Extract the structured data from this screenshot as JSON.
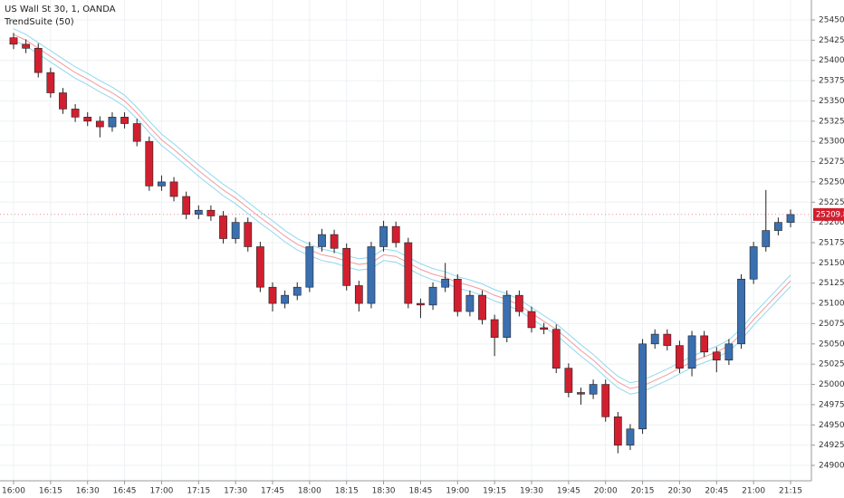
{
  "chart_data": {
    "type": "candlestick",
    "title": "US Wall St 30, 1, OANDA",
    "subtitle": "TrendSuite (50)",
    "categories": [
      "16:00",
      null,
      null,
      "16:15",
      null,
      null,
      "16:30",
      null,
      null,
      "16:45",
      null,
      null,
      "17:00",
      null,
      null,
      "17:15",
      null,
      null,
      "17:30",
      null,
      null,
      "17:45",
      null,
      null,
      "18:00",
      null,
      null,
      "18:15",
      null,
      null,
      "18:30",
      null,
      null,
      "18:45",
      null,
      null,
      "19:00",
      null,
      null,
      "19:15",
      null,
      null,
      "19:30",
      null,
      null,
      "19:45",
      null,
      null,
      "20:00",
      null,
      null,
      "20:15",
      null,
      null,
      "20:30",
      null,
      null,
      "20:45",
      null,
      null,
      "21:00",
      null,
      null,
      "21:15"
    ],
    "open": [
      25428,
      25420,
      25415,
      25385,
      25360,
      25340,
      25330,
      25325,
      25318,
      25330,
      25322,
      25300,
      25245,
      25250,
      25232,
      25210,
      25215,
      25208,
      25180,
      25200,
      25170,
      25120,
      25100,
      25110,
      25120,
      25170,
      25185,
      25168,
      25122,
      25100,
      25170,
      25195,
      25175,
      25100,
      25098,
      25120,
      25130,
      25090,
      25110,
      25080,
      25058,
      25110,
      25090,
      25070,
      25068,
      25020,
      24990,
      24988,
      25000,
      24960,
      24925,
      24945,
      25050,
      25062,
      25048,
      25020,
      25060,
      25040,
      25030,
      25050,
      25130,
      25170,
      25190,
      25200
    ],
    "high": [
      25434,
      25426,
      25421,
      25391,
      25366,
      25346,
      25336,
      25331,
      25336,
      25336,
      25328,
      25306,
      25258,
      25256,
      25238,
      25221,
      25221,
      25214,
      25206,
      25206,
      25176,
      25126,
      25116,
      25126,
      25176,
      25192,
      25191,
      25174,
      25128,
      25176,
      25202,
      25201,
      25181,
      25106,
      25126,
      25150,
      25136,
      25116,
      25116,
      25086,
      25116,
      25116,
      25096,
      25076,
      25074,
      25026,
      24996,
      25006,
      25006,
      24966,
      24951,
      25056,
      25068,
      25068,
      25054,
      25066,
      25066,
      25046,
      25056,
      25136,
      25176,
      25240,
      25206,
      25216
    ],
    "low": [
      25414,
      25409,
      25379,
      25354,
      25334,
      25324,
      25319,
      25305,
      25312,
      25316,
      25294,
      25239,
      25239,
      25226,
      25204,
      25204,
      25202,
      25174,
      25174,
      25164,
      25114,
      25090,
      25094,
      25104,
      25114,
      25164,
      25162,
      25116,
      25090,
      25094,
      25164,
      25169,
      25094,
      25082,
      25092,
      25114,
      25084,
      25084,
      25074,
      25035,
      25052,
      25084,
      25064,
      25062,
      25014,
      24984,
      24975,
      24982,
      24954,
      24915,
      24919,
      24939,
      25044,
      25042,
      25014,
      25010,
      25034,
      25015,
      25024,
      25044,
      25124,
      25164,
      25184,
      25194
    ],
    "close": [
      25420,
      25415,
      25385,
      25360,
      25340,
      25330,
      25325,
      25318,
      25330,
      25322,
      25300,
      25245,
      25250,
      25232,
      25210,
      25215,
      25208,
      25180,
      25200,
      25170,
      25120,
      25100,
      25110,
      25120,
      25170,
      25185,
      25168,
      25122,
      25100,
      25170,
      25195,
      25175,
      25100,
      25098,
      25120,
      25130,
      25090,
      25110,
      25080,
      25058,
      25110,
      25090,
      25070,
      25068,
      25020,
      24990,
      24988,
      25000,
      24960,
      24925,
      24945,
      25050,
      25062,
      25048,
      25020,
      25060,
      25040,
      25030,
      25050,
      25130,
      25170,
      25190,
      25200,
      25209.8
    ],
    "up_color": "#3a6fb0",
    "down_color": "#d11f2f",
    "wick_color": "#222222",
    "bands": [
      {
        "color": "#8fd8ef",
        "values": [
          25439,
          25432,
          25422,
          25412,
          25402,
          25392,
          25384,
          25375,
          25367,
          25357,
          25342,
          25325,
          25309,
          25297,
          25284,
          25271,
          25259,
          25247,
          25237,
          25225,
          25213,
          25202,
          25190,
          25180,
          25173,
          25167,
          25164,
          25159,
          25155,
          25157,
          25167,
          25165,
          25157,
          25149,
          25143,
          25139,
          25133,
          25129,
          25124,
          25117,
          25112,
          25105,
          25095,
          25085,
          25075,
          25062,
          25049,
          25037,
          25023,
          25010,
          25002,
          25005,
          25012,
          25019,
          25027,
          25035,
          25041,
          25047,
          25055,
          25069,
          25087,
          25103,
          25119,
          25135
        ]
      },
      {
        "color": "#f29a9a",
        "values": [
          25432,
          25425,
          25415,
          25405,
          25395,
          25385,
          25377,
          25368,
          25360,
          25350,
          25335,
          25318,
          25302,
          25290,
          25277,
          25264,
          25252,
          25240,
          25230,
          25218,
          25206,
          25195,
          25183,
          25173,
          25166,
          25160,
          25157,
          25152,
          25148,
          25150,
          25160,
          25158,
          25150,
          25142,
          25136,
          25132,
          25126,
          25122,
          25117,
          25110,
          25105,
          25098,
          25088,
          25078,
          25068,
          25055,
          25042,
          25030,
          25016,
          25003,
          24995,
          24998,
          25005,
          25012,
          25020,
          25028,
          25034,
          25040,
          25048,
          25062,
          25080,
          25096,
          25112,
          25128
        ]
      },
      {
        "color": "#8fd8ef",
        "values": [
          25425,
          25418,
          25408,
          25398,
          25388,
          25378,
          25370,
          25361,
          25353,
          25343,
          25328,
          25311,
          25295,
          25283,
          25270,
          25257,
          25245,
          25233,
          25223,
          25211,
          25199,
          25188,
          25176,
          25166,
          25159,
          25153,
          25150,
          25145,
          25141,
          25143,
          25153,
          25151,
          25143,
          25135,
          25129,
          25125,
          25119,
          25115,
          25110,
          25103,
          25098,
          25091,
          25081,
          25071,
          25061,
          25048,
          25035,
          25023,
          25009,
          24996,
          24988,
          24991,
          24998,
          25005,
          25013,
          25021,
          25027,
          25033,
          25041,
          25055,
          25073,
          25089,
          25105,
          25121
        ]
      }
    ],
    "last_price": 25209.8,
    "last_price_color": "#d11f2f",
    "ylim": [
      24900,
      25450
    ],
    "yticks": [
      {
        "value": 24900,
        "label": "24900.0"
      },
      {
        "value": 24925,
        "label": "24925.0"
      },
      {
        "value": 24950,
        "label": "24950.0"
      },
      {
        "value": 24975,
        "label": "24975.0"
      },
      {
        "value": 25000,
        "label": "25000.0"
      },
      {
        "value": 25025,
        "label": "25025.0"
      },
      {
        "value": 25050,
        "label": "25050.0"
      },
      {
        "value": 25075,
        "label": "25075.0"
      },
      {
        "value": 25100,
        "label": "25100.0"
      },
      {
        "value": 25125,
        "label": "25125.0"
      },
      {
        "value": 25150,
        "label": "25150.0"
      },
      {
        "value": 25175,
        "label": "25175.0"
      },
      {
        "value": 25200,
        "label": "25200.0"
      },
      {
        "value": 25225,
        "label": "25225.0"
      },
      {
        "value": 25250,
        "label": "25250.0"
      },
      {
        "value": 25275,
        "label": "25275.0"
      },
      {
        "value": 25300,
        "label": "25300.0"
      },
      {
        "value": 25325,
        "label": "25325.0"
      },
      {
        "value": 25350,
        "label": "25350.0"
      },
      {
        "value": 25375,
        "label": "25375.0"
      },
      {
        "value": 25400,
        "label": "25400.0"
      },
      {
        "value": 25425,
        "label": "25425.0"
      },
      {
        "value": 25450,
        "label": "25450.0"
      }
    ],
    "grid": true
  }
}
